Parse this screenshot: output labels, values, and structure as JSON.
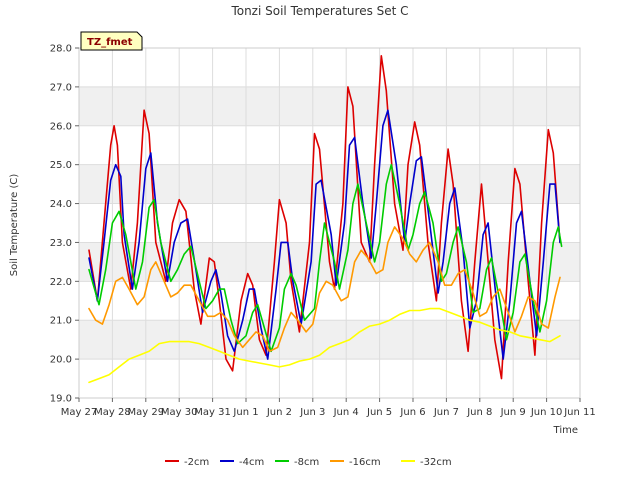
{
  "chart_data": {
    "type": "line",
    "title": "Tonzi Soil Temperatures Set C",
    "xlabel": "Time",
    "ylabel": "Soil Temperature (C)",
    "badge": "TZ_fmet",
    "ylim": [
      19.0,
      28.0
    ],
    "xlim": [
      0,
      15
    ],
    "yticks": [
      19.0,
      20.0,
      21.0,
      22.0,
      23.0,
      24.0,
      25.0,
      26.0,
      27.0,
      28.0
    ],
    "ytick_labels": [
      "19.0",
      "20.0",
      "21.0",
      "22.0",
      "23.0",
      "24.0",
      "25.0",
      "26.0",
      "27.0",
      "28.0"
    ],
    "xticks": [
      0,
      1,
      2,
      3,
      4,
      5,
      6,
      7,
      8,
      9,
      10,
      11,
      12,
      13,
      14,
      15
    ],
    "xtick_labels": [
      "May 27",
      "May 28",
      "May 29",
      "May 30",
      "May 31",
      "Jun 1",
      "Jun 2",
      "Jun 3",
      "Jun 4",
      "Jun 5",
      "Jun 6",
      "Jun 7",
      "Jun 8",
      "Jun 9",
      "Jun 10",
      "Jun 11"
    ],
    "grid": true,
    "legend_position": "bottom",
    "series": [
      {
        "name": "-2cm",
        "color": "#dd0000",
        "x": [
          0.3,
          0.55,
          0.75,
          0.95,
          1.05,
          1.15,
          1.3,
          1.55,
          1.75,
          1.95,
          2.1,
          2.3,
          2.6,
          2.8,
          3.0,
          3.2,
          3.45,
          3.65,
          3.9,
          4.05,
          4.2,
          4.4,
          4.6,
          4.85,
          5.05,
          5.2,
          5.4,
          5.6,
          5.85,
          6.0,
          6.2,
          6.35,
          6.6,
          6.9,
          7.05,
          7.2,
          7.5,
          7.65,
          7.9,
          8.05,
          8.2,
          8.45,
          8.7,
          8.85,
          9.05,
          9.2,
          9.45,
          9.7,
          9.85,
          10.05,
          10.2,
          10.45,
          10.7,
          10.85,
          11.05,
          11.2,
          11.45,
          11.65,
          11.85,
          12.05,
          12.2,
          12.45,
          12.65,
          12.85,
          13.05,
          13.2,
          13.45,
          13.65,
          13.85,
          14.05,
          14.2,
          14.4
        ],
        "y": [
          22.8,
          21.5,
          23.5,
          25.5,
          26.0,
          25.5,
          23.0,
          21.8,
          23.5,
          26.4,
          25.8,
          23.0,
          22.0,
          23.5,
          24.1,
          23.8,
          21.8,
          20.9,
          22.6,
          22.5,
          21.5,
          20.0,
          19.7,
          21.5,
          22.2,
          21.9,
          20.5,
          20.1,
          22.5,
          24.1,
          23.5,
          22.0,
          20.7,
          23.0,
          25.8,
          25.4,
          22.5,
          21.8,
          24.0,
          27.0,
          26.5,
          23.0,
          22.5,
          25.0,
          27.8,
          26.9,
          24.0,
          22.8,
          25.0,
          26.1,
          25.5,
          23.0,
          21.5,
          23.5,
          25.4,
          24.5,
          21.5,
          20.2,
          22.5,
          24.5,
          23.0,
          20.5,
          19.5,
          22.5,
          24.9,
          24.5,
          22.0,
          20.1,
          23.5,
          25.9,
          25.3,
          23.0
        ]
      },
      {
        "name": "-4cm",
        "color": "#0000cc",
        "x": [
          0.3,
          0.55,
          0.75,
          0.95,
          1.1,
          1.25,
          1.35,
          1.6,
          1.8,
          2.0,
          2.15,
          2.35,
          2.65,
          2.85,
          3.05,
          3.25,
          3.5,
          3.7,
          3.95,
          4.1,
          4.25,
          4.45,
          4.65,
          4.9,
          5.1,
          5.25,
          5.45,
          5.65,
          5.9,
          6.05,
          6.25,
          6.4,
          6.65,
          6.95,
          7.1,
          7.25,
          7.55,
          7.7,
          7.95,
          8.1,
          8.25,
          8.5,
          8.75,
          8.9,
          9.1,
          9.25,
          9.5,
          9.75,
          9.9,
          10.1,
          10.25,
          10.5,
          10.75,
          10.9,
          11.1,
          11.25,
          11.5,
          11.7,
          11.9,
          12.1,
          12.25,
          12.5,
          12.7,
          12.9,
          13.1,
          13.25,
          13.5,
          13.7,
          13.9,
          14.1,
          14.25,
          14.4
        ],
        "y": [
          22.6,
          21.5,
          23.0,
          24.6,
          25.0,
          24.7,
          23.2,
          21.8,
          23.0,
          24.9,
          25.3,
          23.5,
          22.0,
          23.0,
          23.5,
          23.6,
          22.3,
          21.2,
          22.0,
          22.3,
          21.7,
          20.6,
          20.2,
          21.0,
          21.8,
          21.8,
          20.8,
          20.0,
          21.8,
          23.0,
          23.0,
          22.0,
          20.9,
          22.5,
          24.5,
          24.6,
          23.2,
          21.9,
          23.5,
          25.5,
          25.7,
          24.0,
          22.6,
          24.0,
          26.0,
          26.4,
          25.0,
          23.0,
          24.0,
          25.1,
          25.2,
          23.5,
          21.7,
          22.5,
          24.0,
          24.4,
          22.8,
          20.8,
          21.5,
          23.2,
          23.5,
          21.5,
          20.0,
          21.5,
          23.5,
          23.8,
          22.0,
          20.6,
          22.5,
          24.5,
          24.5,
          23.0
        ]
      },
      {
        "name": "-8cm",
        "color": "#00cc00",
        "x": [
          0.3,
          0.6,
          0.8,
          1.0,
          1.2,
          1.4,
          1.7,
          1.9,
          2.1,
          2.25,
          2.45,
          2.75,
          2.95,
          3.15,
          3.35,
          3.6,
          3.8,
          4.0,
          4.2,
          4.35,
          4.55,
          4.75,
          5.0,
          5.2,
          5.35,
          5.55,
          5.75,
          6.0,
          6.15,
          6.35,
          6.5,
          6.75,
          7.05,
          7.2,
          7.35,
          7.65,
          7.8,
          8.05,
          8.2,
          8.35,
          8.6,
          8.85,
          9.0,
          9.2,
          9.35,
          9.6,
          9.85,
          10.0,
          10.2,
          10.35,
          10.6,
          10.85,
          11.0,
          11.2,
          11.35,
          11.6,
          11.8,
          12.0,
          12.2,
          12.35,
          12.6,
          12.8,
          13.0,
          13.2,
          13.35,
          13.6,
          13.8,
          14.0,
          14.2,
          14.35,
          14.45
        ],
        "y": [
          22.3,
          21.4,
          22.3,
          23.5,
          23.8,
          23.2,
          21.8,
          22.5,
          23.9,
          24.1,
          23.0,
          22.0,
          22.3,
          22.7,
          22.9,
          22.0,
          21.3,
          21.5,
          21.8,
          21.8,
          21.0,
          20.4,
          20.6,
          21.2,
          21.4,
          20.8,
          20.2,
          20.8,
          21.8,
          22.2,
          21.9,
          21.0,
          21.3,
          22.5,
          23.5,
          22.5,
          21.8,
          22.8,
          24.0,
          24.5,
          23.5,
          22.5,
          23.0,
          24.5,
          25.0,
          24.0,
          22.8,
          23.2,
          24.0,
          24.3,
          23.5,
          22.0,
          22.2,
          23.0,
          23.4,
          22.5,
          21.2,
          21.3,
          22.3,
          22.6,
          21.5,
          20.5,
          21.2,
          22.5,
          22.7,
          21.5,
          20.7,
          21.5,
          23.0,
          23.4,
          22.9
        ]
      },
      {
        "name": "-16cm",
        "color": "#ff9900",
        "x": [
          0.3,
          0.5,
          0.7,
          0.9,
          1.1,
          1.3,
          1.5,
          1.75,
          1.95,
          2.15,
          2.3,
          2.5,
          2.75,
          2.95,
          3.15,
          3.35,
          3.6,
          3.85,
          4.05,
          4.25,
          4.45,
          4.65,
          4.9,
          5.1,
          5.3,
          5.5,
          5.7,
          5.95,
          6.15,
          6.35,
          6.55,
          6.8,
          7.0,
          7.2,
          7.4,
          7.6,
          7.85,
          8.05,
          8.25,
          8.45,
          8.65,
          8.9,
          9.1,
          9.25,
          9.45,
          9.7,
          9.9,
          10.1,
          10.3,
          10.5,
          10.75,
          10.95,
          11.15,
          11.35,
          11.55,
          11.8,
          12.0,
          12.2,
          12.4,
          12.6,
          12.85,
          13.05,
          13.25,
          13.45,
          13.65,
          13.85,
          14.05,
          14.25,
          14.4
        ],
        "y": [
          21.3,
          21.0,
          20.9,
          21.4,
          22.0,
          22.1,
          21.8,
          21.4,
          21.6,
          22.3,
          22.5,
          22.1,
          21.6,
          21.7,
          21.9,
          21.9,
          21.5,
          21.1,
          21.1,
          21.2,
          21.0,
          20.6,
          20.3,
          20.5,
          20.7,
          20.6,
          20.2,
          20.3,
          20.8,
          21.2,
          21.0,
          20.7,
          20.9,
          21.7,
          22.0,
          21.9,
          21.5,
          21.6,
          22.5,
          22.8,
          22.6,
          22.2,
          22.3,
          23.0,
          23.4,
          23.1,
          22.7,
          22.5,
          22.8,
          23.0,
          22.5,
          21.9,
          21.9,
          22.2,
          22.3,
          21.7,
          21.1,
          21.2,
          21.6,
          21.8,
          21.2,
          20.7,
          21.1,
          21.6,
          21.5,
          20.9,
          20.8,
          21.6,
          22.1
        ]
      },
      {
        "name": "-32cm",
        "color": "#ffff00",
        "x": [
          0.3,
          0.6,
          0.9,
          1.2,
          1.5,
          1.8,
          2.1,
          2.4,
          2.7,
          3.0,
          3.3,
          3.6,
          3.9,
          4.2,
          4.5,
          4.8,
          5.1,
          5.4,
          5.7,
          6.0,
          6.3,
          6.6,
          6.9,
          7.2,
          7.5,
          7.8,
          8.1,
          8.4,
          8.7,
          9.0,
          9.3,
          9.6,
          9.9,
          10.2,
          10.5,
          10.8,
          11.1,
          11.4,
          11.7,
          12.0,
          12.3,
          12.6,
          12.9,
          13.2,
          13.5,
          13.8,
          14.1,
          14.4
        ],
        "y": [
          19.4,
          19.5,
          19.6,
          19.8,
          20.0,
          20.1,
          20.2,
          20.4,
          20.45,
          20.45,
          20.45,
          20.4,
          20.3,
          20.2,
          20.1,
          20.0,
          19.95,
          19.9,
          19.85,
          19.8,
          19.85,
          19.95,
          20.0,
          20.1,
          20.3,
          20.4,
          20.5,
          20.7,
          20.85,
          20.9,
          21.0,
          21.15,
          21.25,
          21.25,
          21.3,
          21.3,
          21.2,
          21.1,
          21.0,
          20.95,
          20.85,
          20.75,
          20.7,
          20.6,
          20.55,
          20.5,
          20.45,
          20.6
        ]
      }
    ]
  }
}
